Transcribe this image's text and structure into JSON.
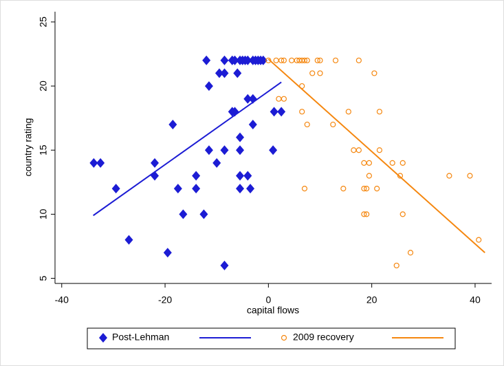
{
  "chart_data": {
    "type": "scatter",
    "xlabel": "capital flows",
    "ylabel": "country rating",
    "xlim": [
      -41.3,
      43.2
    ],
    "ylim": [
      4.6,
      25.8
    ],
    "xticks": [
      -40,
      -20,
      0,
      20,
      40
    ],
    "yticks": [
      5,
      10,
      15,
      20,
      25
    ],
    "grid": false,
    "legend": "bottom",
    "series": [
      {
        "name": "Post-Lehman",
        "color": "#1c1cd4",
        "mode": "marker",
        "marker": "diamond",
        "x": [
          -33.8,
          -32.5,
          -29.5,
          -27,
          -22,
          -22,
          -19.5,
          -18.5,
          -17.5,
          -16.5,
          -14,
          -14,
          -12.5,
          -12,
          -11.5,
          -11.5,
          -10,
          -9.5,
          -8.5,
          -8.5,
          -8.5,
          -8.5,
          -7,
          -7,
          -6.5,
          -6.5,
          -6,
          -5.5,
          -5.5,
          -5.5,
          -5.5,
          -5.5,
          -5,
          -4.5,
          -4,
          -4,
          -4,
          -3.5,
          -3,
          -3,
          -3,
          -2.5,
          -2,
          -1.5,
          -1,
          0.9,
          1.1,
          2.5
        ],
        "values": [
          14,
          14,
          12,
          8,
          14,
          13,
          7,
          17,
          12,
          10,
          13,
          12,
          10,
          22,
          20,
          15,
          14,
          21,
          22,
          21,
          15,
          6,
          18,
          22,
          18,
          22,
          21,
          22,
          16,
          15,
          13,
          12,
          22,
          22,
          19,
          13,
          22,
          12,
          22,
          19,
          17,
          22,
          22,
          22,
          22,
          15,
          18,
          18
        ]
      },
      {
        "color": "#1c1cd4",
        "mode": "line",
        "x": [
          -33.9,
          2.5
        ],
        "values": [
          9.9,
          20.3
        ]
      },
      {
        "name": "2009 recovery",
        "color": "#f5870f",
        "mode": "marker",
        "marker": "circle",
        "x": [
          0,
          1.5,
          2.5,
          3,
          4.5,
          5.5,
          6,
          6.5,
          7,
          7.5,
          9.5,
          10,
          13,
          17.5,
          8.5,
          10,
          20.5,
          6.5,
          2,
          3,
          6.5,
          15.5,
          21.5,
          7.5,
          12.5,
          16.5,
          17.5,
          21.5,
          18.5,
          19.5,
          24,
          26,
          19.5,
          25.5,
          35,
          39,
          7,
          14.5,
          18.5,
          19,
          21,
          18.5,
          19,
          26,
          40.7,
          27.5,
          24.8
        ],
        "values": [
          22,
          22,
          22,
          22,
          22,
          22,
          22,
          22,
          22,
          22,
          22,
          22,
          22,
          22,
          21,
          21,
          21,
          20,
          19,
          19,
          18,
          18,
          18,
          17,
          17,
          15,
          15,
          15,
          14,
          14,
          14,
          14,
          13,
          13,
          13,
          13,
          12,
          12,
          12,
          12,
          12,
          10,
          10,
          10,
          8,
          7,
          6
        ]
      },
      {
        "color": "#f5870f",
        "mode": "line",
        "x": [
          0,
          41.9
        ],
        "values": [
          22.1,
          7.0
        ]
      }
    ]
  }
}
